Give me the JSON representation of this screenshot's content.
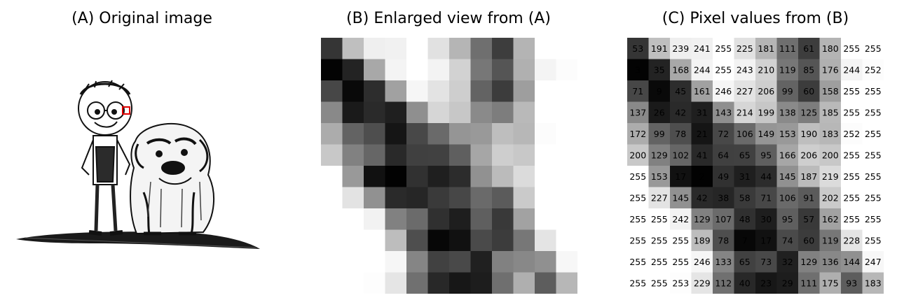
{
  "panels": {
    "a_title": "(A) Original image",
    "b_title": "(B) Enlarged view from (A)",
    "c_title": "(C) Pixel values from (B)"
  },
  "pixel_grid": [
    [
      53,
      191,
      239,
      241,
      255,
      225,
      181,
      111,
      61,
      180,
      255,
      255
    ],
    [
      3,
      35,
      168,
      244,
      255,
      243,
      210,
      119,
      85,
      176,
      244,
      252
    ],
    [
      71,
      9,
      45,
      161,
      246,
      227,
      206,
      99,
      60,
      158,
      255,
      255
    ],
    [
      137,
      26,
      42,
      31,
      143,
      214,
      199,
      138,
      125,
      185,
      255,
      255
    ],
    [
      172,
      99,
      78,
      21,
      72,
      106,
      149,
      153,
      190,
      183,
      252,
      255
    ],
    [
      200,
      129,
      102,
      41,
      64,
      65,
      95,
      166,
      206,
      200,
      255,
      255
    ],
    [
      255,
      153,
      17,
      2,
      49,
      31,
      44,
      145,
      187,
      219,
      255,
      255
    ],
    [
      255,
      227,
      145,
      42,
      38,
      58,
      71,
      106,
      91,
      202,
      255,
      255
    ],
    [
      255,
      255,
      242,
      129,
      107,
      48,
      30,
      95,
      57,
      162,
      255,
      255
    ],
    [
      255,
      255,
      255,
      189,
      78,
      7,
      17,
      74,
      60,
      119,
      228,
      255
    ],
    [
      255,
      255,
      255,
      246,
      133,
      65,
      73,
      32,
      129,
      136,
      144,
      247
    ],
    [
      255,
      255,
      253,
      229,
      112,
      40,
      23,
      29,
      111,
      175,
      93,
      183
    ]
  ]
}
